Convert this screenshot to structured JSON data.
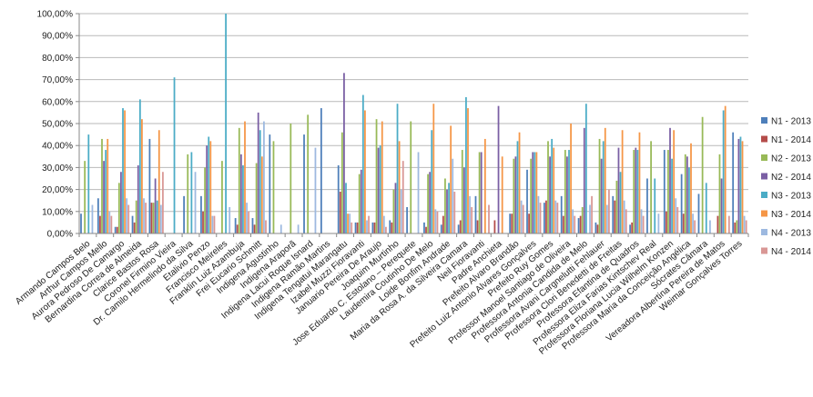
{
  "chart_data": {
    "type": "bar",
    "title": "",
    "xlabel": "",
    "ylabel": "",
    "ylim": [
      0,
      100
    ],
    "ytick_step": 10,
    "ytick_labels": [
      "0,00%",
      "10,00%",
      "20,00%",
      "30,00%",
      "40,00%",
      "50,00%",
      "60,00%",
      "70,00%",
      "80,00%",
      "90,00%",
      "100,00%"
    ],
    "grid": true,
    "legend_position": "right",
    "categories": [
      "Armando Campos Belo",
      "Arthur Campos Mello",
      "Aurora Pedroso De Camargo",
      "Bernardina Correa de Almeida",
      "Clarice Bastos Rosa",
      "Coronel Firmino Vieira",
      "Dr. Camilo Hermelindo da Silva",
      "Etalivio Penzo",
      "Francisco Meireles",
      "Franklin Luiz Azambuja",
      "Frei Eucario Schmitt",
      "Indigena Agustinho",
      "Indigena Araporã",
      "Indigena Lacui Roque Isnard",
      "Indigena Ramão Martins",
      "Indigena Tengatui Marangatu",
      "Izabel Muzzi Fioravanti",
      "Januario Pereira De Araujo",
      "Joaquim Murtinho",
      "Jose Eduardo C. Estolano – Perequete",
      "Laudemira Coutinho De Melo",
      "Loide Bonfim Andrade",
      "Maria da Rosa A. da Silveira Camara",
      "Neil Fioravanti",
      "Padre Anchieta",
      "Prefeito Alvaro Brandão",
      "Prefeito Luiz Antonio Alvares Gonçalves",
      "Prefeito Ruy Gomes",
      "Professor Manoel Santiago de Oliveira",
      "Professora Antonia Candida de Melo",
      "Professora Avani Cargnelutti Fehlauer",
      "Professora Clori Benedetti de Freitas",
      "Professora Efantina de Quadros",
      "Professora Eliza Farias Kintschev Real",
      "Professora Floriana Lucia Wilhelm Konzen",
      "Professora Maria da Conceição Angélica",
      "Sócrates Câmara",
      "Vereadora Albertina Pereira de Matos",
      "Weimar Gonçalves Torres"
    ],
    "series": [
      {
        "name": "N1 - 2013",
        "color": "#4e7fba",
        "values": [
          9,
          16,
          3,
          8,
          43,
          null,
          17,
          17,
          null,
          7,
          7,
          45,
          null,
          45,
          57,
          31,
          5,
          5,
          6,
          12,
          5,
          4,
          4,
          17,
          null,
          9,
          29,
          14,
          17,
          7,
          5,
          17,
          4,
          25,
          38,
          27,
          18,
          null,
          46
        ]
      },
      {
        "name": "N1 - 2014",
        "color": "#b44c4a",
        "values": [
          null,
          8,
          3,
          5,
          14,
          null,
          null,
          10,
          null,
          4,
          4,
          null,
          null,
          null,
          null,
          19,
          5,
          5,
          5,
          null,
          3,
          8,
          6,
          6,
          6,
          9,
          9,
          15,
          8,
          8,
          4,
          15,
          5,
          null,
          10,
          9,
          null,
          8,
          5
        ]
      },
      {
        "name": "N2 - 2013",
        "color": "#98b957",
        "values": [
          33,
          43,
          23,
          15,
          14,
          null,
          36,
          30,
          33,
          48,
          32,
          42,
          50,
          54,
          null,
          46,
          27,
          52,
          20,
          51,
          27,
          25,
          38,
          37,
          null,
          34,
          34,
          42,
          38,
          12,
          43,
          24,
          38,
          42,
          38,
          36,
          53,
          36,
          6
        ]
      },
      {
        "name": "N2 - 2014",
        "color": "#7a5fa4",
        "values": [
          null,
          33,
          28,
          31,
          25,
          null,
          null,
          40,
          null,
          36,
          55,
          null,
          null,
          null,
          null,
          73,
          29,
          39,
          23,
          null,
          28,
          20,
          30,
          37,
          58,
          35,
          37,
          35,
          35,
          48,
          34,
          39,
          39,
          null,
          48,
          35,
          null,
          25,
          43
        ]
      },
      {
        "name": "N3 - 2013",
        "color": "#4bacc6",
        "values": [
          45,
          38,
          57,
          61,
          15,
          71,
          37,
          44,
          100,
          31,
          47,
          null,
          null,
          null,
          null,
          23,
          63,
          40,
          59,
          null,
          47,
          23,
          62,
          null,
          null,
          42,
          37,
          43,
          38,
          59,
          42,
          28,
          38,
          25,
          34,
          30,
          23,
          56,
          44
        ]
      },
      {
        "name": "N3 - 2014",
        "color": "#f59646",
        "values": [
          null,
          43,
          56,
          52,
          47,
          null,
          null,
          42,
          null,
          51,
          35,
          null,
          null,
          null,
          null,
          9,
          56,
          51,
          42,
          null,
          59,
          49,
          57,
          43,
          35,
          46,
          37,
          39,
          50,
          null,
          48,
          47,
          46,
          null,
          47,
          41,
          null,
          58,
          42
        ]
      },
      {
        "name": "N4 - 2013",
        "color": "#9db9e0",
        "values": [
          13,
          10,
          16,
          16,
          13,
          null,
          28,
          8,
          12,
          14,
          51,
          4,
          4,
          39,
          null,
          9,
          6,
          8,
          20,
          37,
          11,
          34,
          17,
          null,
          null,
          15,
          17,
          15,
          11,
          13,
          13,
          15,
          11,
          9,
          16,
          9,
          6,
          null,
          8
        ]
      },
      {
        "name": "N4 - 2014",
        "color": "#d99795",
        "values": [
          null,
          8,
          13,
          14,
          28,
          null,
          null,
          8,
          null,
          10,
          6,
          null,
          null,
          null,
          null,
          5,
          8,
          3,
          33,
          null,
          10,
          19,
          12,
          13,
          null,
          13,
          14,
          14,
          8,
          17,
          20,
          11,
          8,
          null,
          12,
          6,
          null,
          8,
          6
        ]
      }
    ]
  }
}
